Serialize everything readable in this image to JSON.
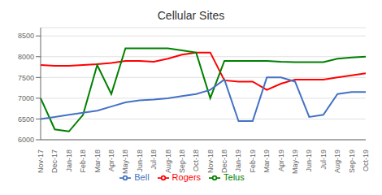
{
  "chart_data": {
    "type": "line",
    "title": "Cellular Sites",
    "categories": [
      "Nov-17",
      "Dec-17",
      "Jan-18",
      "Feb-18",
      "Mar-18",
      "Apr-18",
      "May-18",
      "Jun-18",
      "Jul-18",
      "Aug-18",
      "Sep-18",
      "Oct-18",
      "Nov-18",
      "Dec-18",
      "Jan-19",
      "Feb-19",
      "Mar-19",
      "Apr-19",
      "May-19",
      "Jun-19",
      "Jul-19",
      "Aug-19",
      "Sep-19",
      "Oct-19"
    ],
    "series": [
      {
        "name": "Rogers",
        "color": "#FF0000",
        "values": [
          7800,
          7780,
          7780,
          7800,
          7820,
          7850,
          7900,
          7900,
          7880,
          7950,
          8050,
          8100,
          8100,
          7430,
          7400,
          7400,
          7200,
          7350,
          7450,
          7450,
          7450,
          7500,
          7550,
          7600
        ]
      },
      {
        "name": "Telus",
        "color": "#008000",
        "values": [
          7000,
          6250,
          6200,
          6600,
          7800,
          7100,
          8200,
          8200,
          8200,
          8200,
          8150,
          8100,
          7000,
          7900,
          7900,
          7900,
          7900,
          7880,
          7870,
          7870,
          7870,
          7950,
          7980,
          8000
        ]
      },
      {
        "name": "Bell",
        "color": "#4472C4",
        "values": [
          6500,
          6550,
          6600,
          6650,
          6700,
          6800,
          6900,
          6950,
          6970,
          7000,
          7050,
          7100,
          7200,
          7450,
          6450,
          6450,
          7500,
          7500,
          7400,
          6550,
          6600,
          7100,
          7150,
          7150
        ]
      }
    ],
    "ylim": [
      6000,
      8700
    ],
    "yticks": [
      6000,
      6500,
      7000,
      7500,
      8000,
      8500
    ],
    "grid": true,
    "legend": "bottom"
  }
}
